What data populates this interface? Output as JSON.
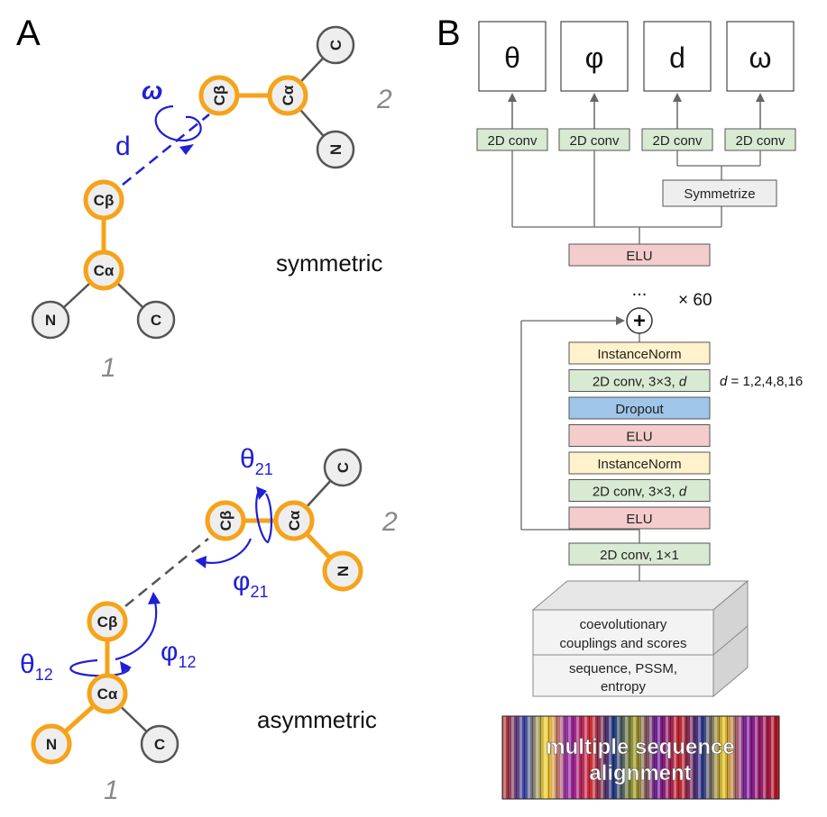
{
  "panels": {
    "a_letter": "A",
    "b_letter": "B"
  },
  "panel_a": {
    "symmetric": {
      "caption": "symmetric",
      "res1_number": "1",
      "res2_number": "2",
      "res1": {
        "cb": "Cβ",
        "ca": "Cα",
        "n": "N",
        "c": "C"
      },
      "res2": {
        "cb": "Cβ",
        "ca": "Cα",
        "n": "N",
        "c": "C"
      },
      "distance_label": "d",
      "omega_label": "ω"
    },
    "asymmetric": {
      "caption": "asymmetric",
      "res1_number": "1",
      "res2_number": "2",
      "res1": {
        "cb": "Cβ",
        "ca": "Cα",
        "n": "N",
        "c": "C"
      },
      "res2": {
        "cb": "Cβ",
        "ca": "Cα",
        "n": "N",
        "c": "C"
      },
      "theta12": {
        "symbol": "θ",
        "sub": "12"
      },
      "phi12": {
        "symbol": "φ",
        "sub": "12"
      },
      "theta21": {
        "symbol": "θ",
        "sub": "21"
      },
      "phi21": {
        "symbol": "φ",
        "sub": "21"
      }
    }
  },
  "panel_b": {
    "outputs": [
      "θ",
      "φ",
      "d",
      "ω"
    ],
    "head_convs": [
      "2D conv",
      "2D conv",
      "2D conv",
      "2D conv"
    ],
    "symmetrize": "Symmetrize",
    "top_elu": "ELU",
    "ellipsis": "...",
    "repeat": "× 60",
    "plus": "+",
    "dilation_note": "d = 1,2,4,8,16",
    "block_layers": [
      {
        "label": "InstanceNorm",
        "kind": "norm"
      },
      {
        "label": "2D conv, 3×3, ",
        "italic": "d",
        "kind": "conv"
      },
      {
        "label": "Dropout",
        "kind": "dropout"
      },
      {
        "label": "ELU",
        "kind": "elu"
      },
      {
        "label": "InstanceNorm",
        "kind": "norm"
      },
      {
        "label": "2D conv, 3×3, ",
        "italic": "d",
        "kind": "conv"
      },
      {
        "label": "ELU",
        "kind": "elu"
      }
    ],
    "input_conv": "2D conv, 1×1",
    "features": {
      "top_line1": "coevolutionary",
      "top_line2": "couplings and scores",
      "bottom_line1": "sequence, PSSM,",
      "bottom_line2": "entropy"
    },
    "msa_line1": "multiple sequence",
    "msa_line2": "alignment"
  },
  "colors": {
    "orange": "#f5a31a",
    "blue": "#1f1fd6",
    "grey_stroke": "#555555",
    "atom_fill": "#eeeeee",
    "conv_fill": "#d9ead3",
    "elu_fill": "#f4cccc",
    "norm_fill": "#fff2cc",
    "dropout_fill": "#9fc5e8",
    "symmetrize_fill": "#eeeeee"
  }
}
